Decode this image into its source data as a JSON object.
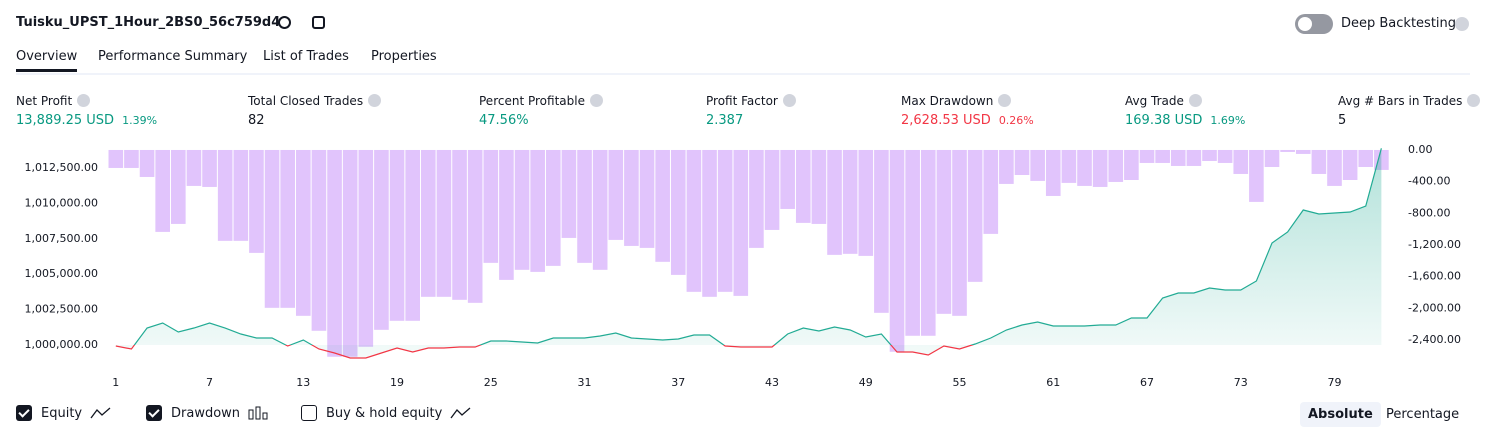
{
  "header": {
    "title": "Tuisku_UPST_1Hour_2BS0_56c759d4",
    "deep_backtesting": "Deep Backtesting",
    "deep_backtesting_enabled": false
  },
  "tabs": {
    "items": [
      "Overview",
      "Performance Summary",
      "List of Trades",
      "Properties"
    ],
    "active": 0
  },
  "stats": [
    {
      "label": "Net Profit",
      "value": "13,889.25 USD",
      "percent": "1.39%",
      "color": "#089981"
    },
    {
      "label": "Total Closed Trades",
      "value": "82",
      "color": "#131722"
    },
    {
      "label": "Percent Profitable",
      "value": "47.56%",
      "color": "#089981"
    },
    {
      "label": "Profit Factor",
      "value": "2.387",
      "color": "#089981"
    },
    {
      "label": "Max Drawdown",
      "value": "2,628.53 USD",
      "percent": "0.26%",
      "color": "#f23645"
    },
    {
      "label": "Avg Trade",
      "value": "169.38 USD",
      "percent": "1.69%",
      "color": "#089981"
    },
    {
      "label": "Avg # Bars in Trades",
      "value": "5",
      "color": "#131722"
    }
  ],
  "chart_data": {
    "type": "combo",
    "x": [
      1,
      2,
      3,
      4,
      5,
      6,
      7,
      8,
      9,
      10,
      11,
      12,
      13,
      14,
      15,
      16,
      17,
      18,
      19,
      20,
      21,
      22,
      23,
      24,
      25,
      26,
      27,
      28,
      29,
      30,
      31,
      32,
      33,
      34,
      35,
      36,
      37,
      38,
      39,
      40,
      41,
      42,
      43,
      44,
      45,
      46,
      47,
      48,
      49,
      50,
      51,
      52,
      53,
      54,
      55,
      56,
      57,
      58,
      59,
      60,
      61,
      62,
      63,
      64,
      65,
      66,
      67,
      68,
      69,
      70,
      71,
      72,
      73,
      74,
      75,
      76,
      77,
      78,
      79,
      80,
      81,
      82
    ],
    "xlim": [
      0.5,
      83
    ],
    "xticks": [
      1,
      7,
      13,
      19,
      25,
      31,
      37,
      43,
      49,
      55,
      61,
      67,
      73,
      79
    ],
    "ylim": [
      998941,
      1013912
    ],
    "yticks": [
      {
        "value": 1000000,
        "label": "1,000,000.00"
      },
      {
        "value": 1002500,
        "label": "1,002,500.00"
      },
      {
        "value": 1005000,
        "label": "1,005,000.00"
      },
      {
        "value": 1007500,
        "label": "1,007,500.00"
      },
      {
        "value": 1010000,
        "label": "1,010,000.00"
      },
      {
        "value": 1012500,
        "label": "1,012,500.00"
      }
    ],
    "y2lim": [
      -2653,
      25
    ],
    "y2ticks": [
      {
        "value": 0,
        "label": "0.00"
      },
      {
        "value": -400,
        "label": "-400.00"
      },
      {
        "value": -800,
        "label": "-800.00"
      },
      {
        "value": -1200,
        "label": "-1,200.00"
      },
      {
        "value": -1600,
        "label": "-1,600.00"
      },
      {
        "value": -2000,
        "label": "-2,000.00"
      },
      {
        "value": -2400,
        "label": "-2,400.00"
      }
    ],
    "series": [
      {
        "name": "Equity",
        "type": "line",
        "checked": true,
        "color": "#22ab94",
        "negative_color": "#f23645",
        "values": [
          999929,
          999718,
          1001200,
          1001554,
          1000918,
          1001200,
          1001554,
          1001200,
          1000777,
          1000494,
          1000494,
          999929,
          1000353,
          999718,
          999435,
          999082,
          999082,
          999435,
          999788,
          999506,
          999788,
          999788,
          999859,
          999859,
          1000282,
          1000282,
          1000212,
          1000141,
          1000494,
          1000494,
          1000494,
          1000636,
          1000847,
          1000494,
          1000424,
          1000353,
          1000424,
          1000706,
          1000706,
          999929,
          999859,
          999859,
          999859,
          1000777,
          1001200,
          1000989,
          1001271,
          1001059,
          1000565,
          1000777,
          999506,
          999506,
          999294,
          999929,
          999718,
          1000071,
          1000494,
          1001059,
          1001412,
          1001624,
          1001342,
          1001342,
          1001342,
          1001412,
          1001412,
          1001907,
          1001907,
          1003319,
          1003672,
          1003672,
          1004025,
          1003884,
          1003884,
          1004520,
          1007203,
          1007980,
          1009534,
          1009251,
          1009322,
          1009392,
          1009816,
          1013889
        ]
      },
      {
        "name": "Drawdown",
        "type": "bar",
        "axis": "y2",
        "checked": true,
        "color": "#e1c4fc",
        "values": [
          -227,
          -227,
          -341,
          -1035,
          -934,
          -454,
          -467,
          -1148,
          -1148,
          -1300,
          -1994,
          -1994,
          -2095,
          -2284,
          -2612,
          -2612,
          -2486,
          -2272,
          -2158,
          -2158,
          -1855,
          -1855,
          -1893,
          -1931,
          -1426,
          -1641,
          -1514,
          -1540,
          -1464,
          -1111,
          -1426,
          -1514,
          -1136,
          -1212,
          -1237,
          -1413,
          -1578,
          -1792,
          -1855,
          -1792,
          -1843,
          -1237,
          -1010,
          -745,
          -921,
          -934,
          -1325,
          -1312,
          -1338,
          -2057,
          -2549,
          -2347,
          -2347,
          -2070,
          -2095,
          -1666,
          -1060,
          -429,
          -316,
          -391,
          -581,
          -416,
          -454,
          -467,
          -404,
          -379,
          -164,
          -164,
          -202,
          -202,
          -139,
          -164,
          -303,
          -656,
          -215,
          -25,
          -50,
          -303,
          -454,
          -379,
          -215,
          -252
        ]
      },
      {
        "name": "Buy & hold equity",
        "type": "line",
        "checked": false
      }
    ]
  },
  "view_toggle": {
    "items": [
      "Absolute",
      "Percentage"
    ],
    "active": 0
  }
}
